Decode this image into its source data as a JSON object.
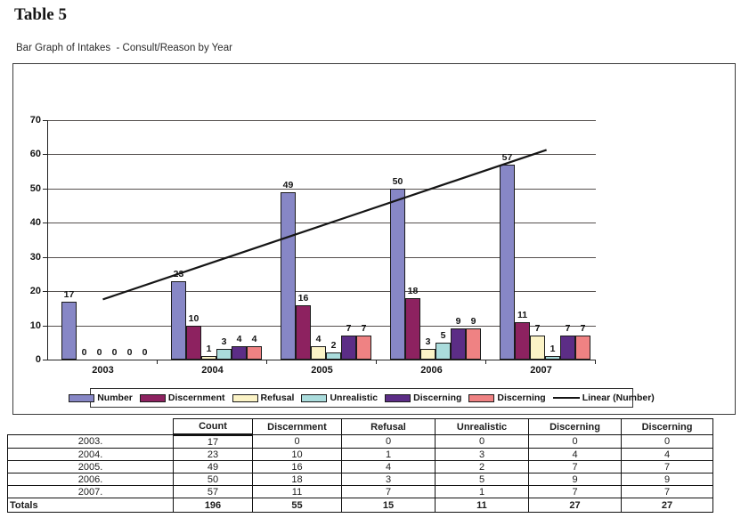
{
  "page": {
    "title": "Table 5",
    "chart_caption": "Bar Graph of Intakes  - Consult/Reason by Year"
  },
  "chart_data": {
    "type": "bar",
    "title": "Bar Graph of Intakes - Consult/Reason by Year",
    "categories": [
      "2003",
      "2004",
      "2005",
      "2006",
      "2007"
    ],
    "series": [
      {
        "name": "Number",
        "color": "#8787c6",
        "values": [
          17,
          23,
          49,
          50,
          57
        ]
      },
      {
        "name": "Discernment",
        "color": "#8d2260",
        "values": [
          0,
          10,
          16,
          18,
          11
        ]
      },
      {
        "name": "Refusal",
        "color": "#fbf3c6",
        "values": [
          0,
          1,
          4,
          3,
          7
        ]
      },
      {
        "name": "Unrealistic",
        "color": "#aadcdc",
        "values": [
          0,
          3,
          2,
          5,
          1
        ]
      },
      {
        "name": "Discerning",
        "color": "#5c2d86",
        "values": [
          0,
          4,
          7,
          9,
          7
        ]
      },
      {
        "name": "Discerning",
        "color": "#ef8283",
        "values": [
          0,
          4,
          7,
          9,
          7
        ]
      }
    ],
    "trendline": {
      "label": "Linear (Number)",
      "color": "#151515",
      "start_index": 0,
      "start_value": 17.6,
      "end_index": 4.05,
      "end_value": 61.3
    },
    "ylim": [
      0,
      70
    ],
    "ytick": 10,
    "grid": true,
    "legend_position": "bottom",
    "xlabel": "",
    "ylabel": ""
  },
  "table": {
    "headers": [
      "",
      "Count",
      "Discernment",
      "Refusal",
      "Unrealistic",
      "Discerning",
      "Discerning"
    ],
    "rows": [
      {
        "label": "2003.",
        "values": [
          17,
          0,
          0,
          0,
          0,
          0
        ]
      },
      {
        "label": "2004.",
        "values": [
          23,
          10,
          1,
          3,
          4,
          4
        ]
      },
      {
        "label": "2005.",
        "values": [
          49,
          16,
          4,
          2,
          7,
          7
        ]
      },
      {
        "label": "2006.",
        "values": [
          50,
          18,
          3,
          5,
          9,
          9
        ]
      },
      {
        "label": "2007.",
        "values": [
          57,
          11,
          7,
          1,
          7,
          7
        ]
      }
    ],
    "totals": {
      "label": "Totals",
      "values": [
        196,
        55,
        15,
        11,
        27,
        27
      ]
    }
  }
}
